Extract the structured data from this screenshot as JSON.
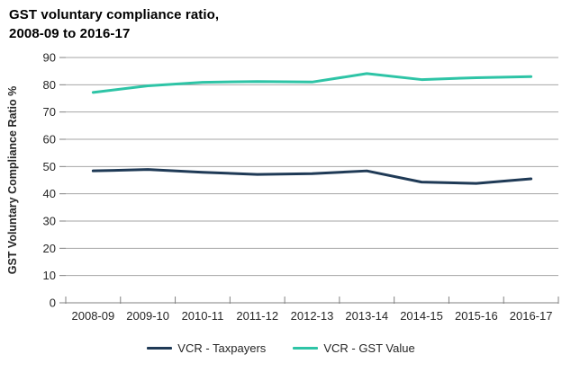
{
  "title": {
    "line1": "GST voluntary compliance ratio,",
    "line2": "2008-09 to 2016-17"
  },
  "chart_data": {
    "type": "line",
    "title": "GST voluntary compliance ratio, 2008-09 to 2016-17",
    "categories": [
      "2008-09",
      "2009-10",
      "2010-11",
      "2011-12",
      "2012-13",
      "2013-14",
      "2014-15",
      "2015-16",
      "2016-17"
    ],
    "series": [
      {
        "name": "VCR - Taxpayers",
        "color": "#1F3A56",
        "values": [
          48.4,
          48.9,
          47.9,
          47.1,
          47.4,
          48.4,
          44.3,
          43.8,
          45.5
        ]
      },
      {
        "name": "VCR - GST Value",
        "color": "#2EC4A6",
        "values": [
          77.2,
          79.6,
          80.9,
          81.2,
          81.0,
          84.1,
          81.9,
          82.6,
          83.0
        ]
      }
    ],
    "xlabel": "",
    "ylabel": "GST Voluntary Compliance Ratio %",
    "ylim": [
      0,
      90
    ],
    "yticks": [
      0,
      10,
      20,
      30,
      40,
      50,
      60,
      70,
      80,
      90
    ],
    "grid": true,
    "legend_position": "bottom"
  },
  "colors": {
    "gridline": "#A6A6A6",
    "axis": "#808080",
    "tick_label": "#262626",
    "title_text": "#000000"
  }
}
